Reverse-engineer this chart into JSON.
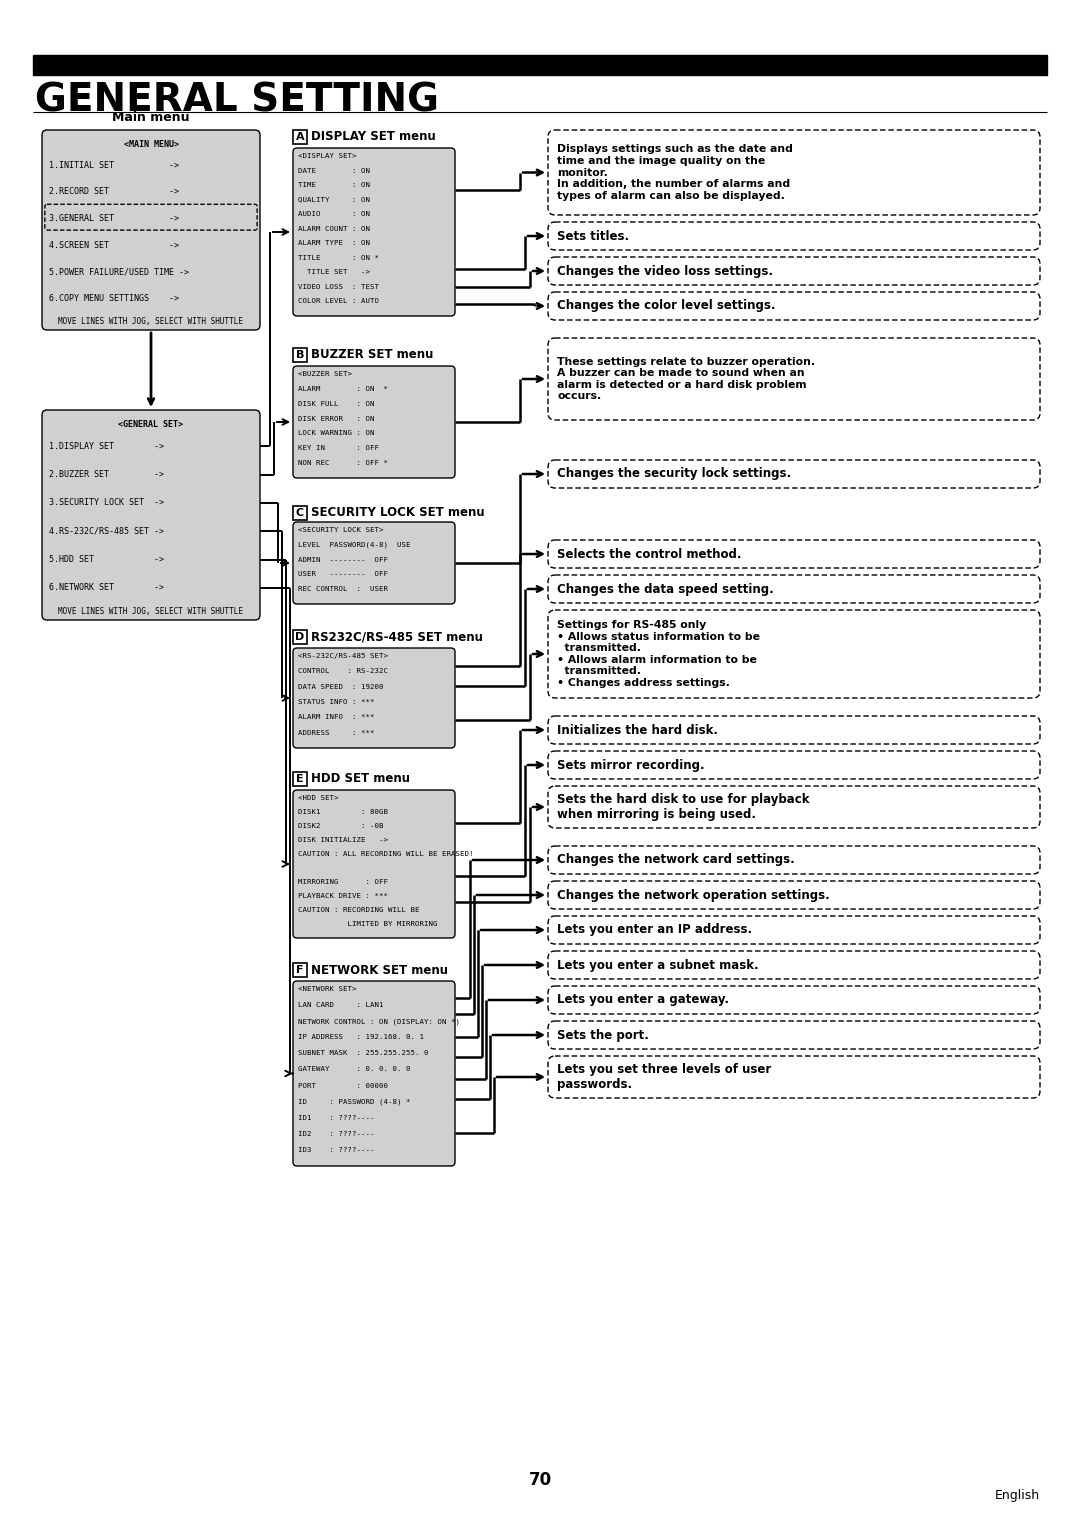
{
  "title": "GENERAL SETTING",
  "page_number": "70",
  "footer_text": "English",
  "bg": "#ffffff",
  "main_menu_label": "Main menu",
  "main_menu_title": "<MAIN MENU>",
  "main_menu_items": [
    "1.INITIAL SET           ->",
    "2.RECORD SET            ->",
    "3.GENERAL SET           ->",
    "4.SCREEN SET            ->",
    "5.POWER FAILURE/USED TIME ->",
    "6.COPY MENU SETTINGS    ->"
  ],
  "main_menu_footer": "MOVE LINES WITH JOG, SELECT WITH SHUTTLE",
  "general_menu_title": "<GENERAL SET>",
  "general_menu_items": [
    "1.DISPLAY SET        ->",
    "2.BUZZER SET         ->",
    "3.SECURITY LOCK SET  ->",
    "4.RS-232C/RS-485 SET ->",
    "5.HDD SET            ->",
    "6.NETWORK SET        ->"
  ],
  "general_menu_footer": "MOVE LINES WITH JOG, SELECT WITH SHUTTLE",
  "section_A_title": "DISPLAY SET menu",
  "section_A_box": [
    "<DISPLAY SET>",
    "DATE        : ON",
    "TIME        : ON",
    "QUALITY     : ON",
    "AUDIO       : ON",
    "ALARM COUNT : ON",
    "ALARM TYPE  : ON",
    "TITLE       : ON *",
    "  TITLE SET   ->",
    "VIDEO LOSS  : TEST",
    "COLOR LEVEL : AUTO"
  ],
  "section_B_title": "BUZZER SET menu",
  "section_B_box": [
    "<BUZZER SET>",
    "ALARM        : ON  *",
    "DISK FULL    : ON",
    "DISK ERROR   : ON",
    "LOCK WARNING : ON",
    "KEY IN       : OFF",
    "NON REC      : OFF *"
  ],
  "section_C_title": "SECURITY LOCK SET menu",
  "section_C_box": [
    "<SECURITY LOCK SET>",
    "LEVEL  PASSWORD(4-8)  USE",
    "ADMIN  --------  OFF",
    "USER   --------  OFF",
    "REC CONTROL  :  USER"
  ],
  "section_D_title": "RS232C/RS-485 SET menu",
  "section_D_box": [
    "<RS-232C/RS-485 SET>",
    "CONTROL    : RS-232C",
    "DATA SPEED  : 19200",
    "STATUS INFO : ***",
    "ALARM INFO  : ***",
    "ADDRESS     : ***"
  ],
  "section_E_title": "HDD SET menu",
  "section_E_box": [
    "<HDD SET>",
    "DISK1         : 80GB",
    "DISK2         : -0B",
    "DISK INITIALIZE   ->",
    "CAUTION : ALL RECORDING WILL BE ERASED!",
    "",
    "MIRRORING      : OFF",
    "PLAYBACK DRIVE : ***",
    "CAUTION : RECORDING WILL BE",
    "           LIMITED BY MIRRORING"
  ],
  "section_F_title": "NETWORK SET menu",
  "section_F_box": [
    "<NETWORK SET>",
    "LAN CARD     : LAN1",
    "NETWORK CONTROL : ON (DISPLAY: ON *)",
    "IP ADDRESS   : 192.168. 0. 1",
    "SUBNET MASK  : 255.255.255. 0",
    "GATEWAY      : 0. 0. 0. 0",
    "PORT         : 00000",
    "ID     : PASSWORD (4-8) *",
    "ID1    : ????----",
    "ID2    : ????----",
    "ID3    : ????----"
  ],
  "desc_A_main": "Displays settings such as the date and\ntime and the image quality on the\nmonitor.\nIn addition, the number of alarms and\ntypes of alarm can also be displayed.",
  "desc_A_title": "Sets titles.",
  "desc_A_video": "Changes the video loss settings.",
  "desc_A_color": "Changes the color level settings.",
  "desc_B": "These settings relate to buzzer operation.\nA buzzer can be made to sound when an\nalarm is detected or a hard disk problem\noccurs.",
  "desc_C": "Changes the security lock settings.",
  "desc_D_ctrl": "Selects the control method.",
  "desc_D_data": "Changes the data speed setting.",
  "desc_D_rs485": "Settings for RS-485 only\n• Allows status information to be\n  transmitted.\n• Allows alarm information to be\n  transmitted.\n• Changes address settings.",
  "desc_E_init": "Initializes the hard disk.",
  "desc_E_mirror": "Sets mirror recording.",
  "desc_E_pb": "Sets the hard disk to use for playback\nwhen mirroring is being used.",
  "desc_F_card": "Changes the network card settings.",
  "desc_F_op": "Changes the network operation settings.",
  "desc_F_ip": "Lets you enter an IP address.",
  "desc_F_sub": "Lets you enter a subnet mask.",
  "desc_F_gw": "Lets you enter a gateway.",
  "desc_F_port": "Sets the port.",
  "desc_F_pw": "Lets you set three levels of user\npasswords."
}
